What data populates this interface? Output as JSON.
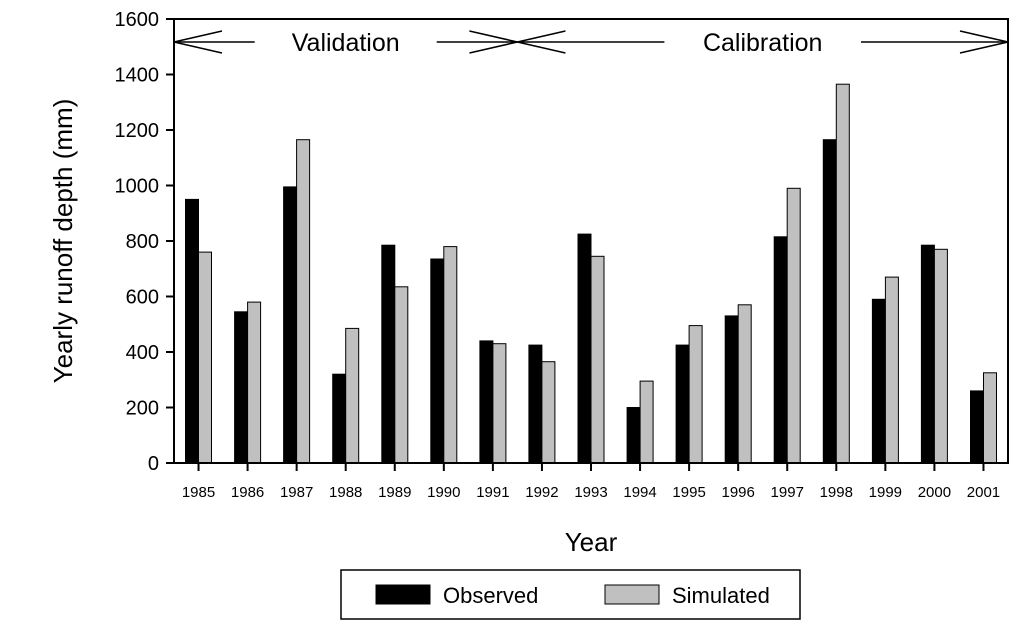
{
  "chart_data": {
    "type": "bar",
    "title": "",
    "xlabel": "Year",
    "ylabel": "Yearly runoff depth (mm)",
    "ylim": [
      0,
      1600
    ],
    "yticks": [
      0,
      200,
      400,
      600,
      800,
      1000,
      1200,
      1400,
      1600
    ],
    "categories": [
      "1985",
      "1986",
      "1987",
      "1988",
      "1989",
      "1990",
      "1991",
      "1992",
      "1993",
      "1994",
      "1995",
      "1996",
      "1997",
      "1998",
      "1999",
      "2000",
      "2001"
    ],
    "series": [
      {
        "name": "Observed",
        "color": "#000000",
        "values": [
          950,
          545,
          995,
          320,
          785,
          735,
          440,
          425,
          825,
          200,
          425,
          530,
          815,
          1165,
          590,
          785,
          260
        ]
      },
      {
        "name": "Simulated",
        "color": "#c0c0c0",
        "values": [
          760,
          580,
          1165,
          485,
          635,
          780,
          430,
          365,
          745,
          295,
          495,
          570,
          990,
          1365,
          670,
          770,
          325
        ]
      }
    ],
    "periods": [
      {
        "label": "Validation",
        "start": "1985",
        "end": "1991"
      },
      {
        "label": "Calibration",
        "start": "1992",
        "end": "2001"
      }
    ],
    "legend": {
      "placement": "bottom-center"
    }
  }
}
